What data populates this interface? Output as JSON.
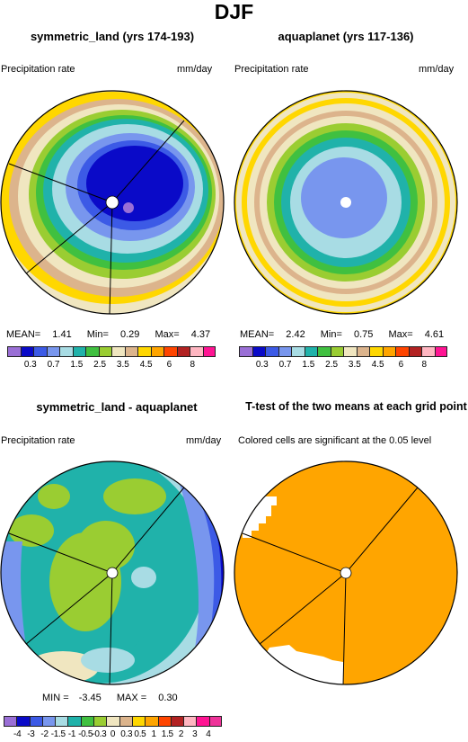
{
  "title": "DJF",
  "panels": [
    {
      "id": "p1",
      "title": "symmetric_land (yrs 174-193)",
      "left_label": "Precipitation rate",
      "right_label": "mm/day",
      "stats": [
        {
          "label": "MEAN=",
          "value": "1.41"
        },
        {
          "label": "Min=",
          "value": "0.29"
        },
        {
          "label": "Max=",
          "value": "4.37"
        }
      ]
    },
    {
      "id": "p2",
      "title": "aquaplanet (yrs 117-136)",
      "left_label": "Precipitation rate",
      "right_label": "mm/day",
      "stats": [
        {
          "label": "MEAN=",
          "value": "2.42"
        },
        {
          "label": "Min=",
          "value": "0.75"
        },
        {
          "label": "Max=",
          "value": "4.61"
        }
      ]
    },
    {
      "id": "p3",
      "title": "symmetric_land - aquaplanet",
      "left_label": "Precipitation rate",
      "right_label": "mm/day",
      "stats": [
        {
          "label": "MIN =",
          "value": "-3.45"
        },
        {
          "label": "MAX =",
          "value": "0.30"
        }
      ]
    },
    {
      "id": "p4",
      "title": "T-test of the two means at each grid point",
      "left_label": "Colored cells are significant at the 0.05 level",
      "right_label": ""
    }
  ],
  "colorbar_precip": {
    "colors": [
      "#9a6fd6",
      "#0a0ac8",
      "#3c5ae6",
      "#7896ee",
      "#a8dce4",
      "#20b2aa",
      "#40c040",
      "#9acd32",
      "#f0e6c0",
      "#dcb48c",
      "#ffd700",
      "#ffa500",
      "#ff4500",
      "#b22222",
      "#ffb6c1",
      "#ff1493"
    ],
    "tick_labels": [
      "0.3",
      "0.7",
      "1.5",
      "2.5",
      "3.5",
      "4.5",
      "6",
      "8"
    ]
  },
  "colorbar_diff": {
    "colors": [
      "#9a6fd6",
      "#0a0ac8",
      "#3c5ae6",
      "#7896ee",
      "#a8dce4",
      "#20b2aa",
      "#40c040",
      "#9acd32",
      "#f0e6c0",
      "#dcb48c",
      "#ffd700",
      "#ffa500",
      "#ff4500",
      "#b22222",
      "#ffb6c1",
      "#ff1493",
      "#ee3399"
    ],
    "tick_labels": [
      "-4",
      "-3",
      "-2",
      "-1.5",
      "-1",
      "-0.5",
      "-0.3",
      "0",
      "0.3",
      "0.5",
      "1",
      "1.5",
      "2",
      "3",
      "4"
    ]
  },
  "significant_color": "#ffa500"
}
